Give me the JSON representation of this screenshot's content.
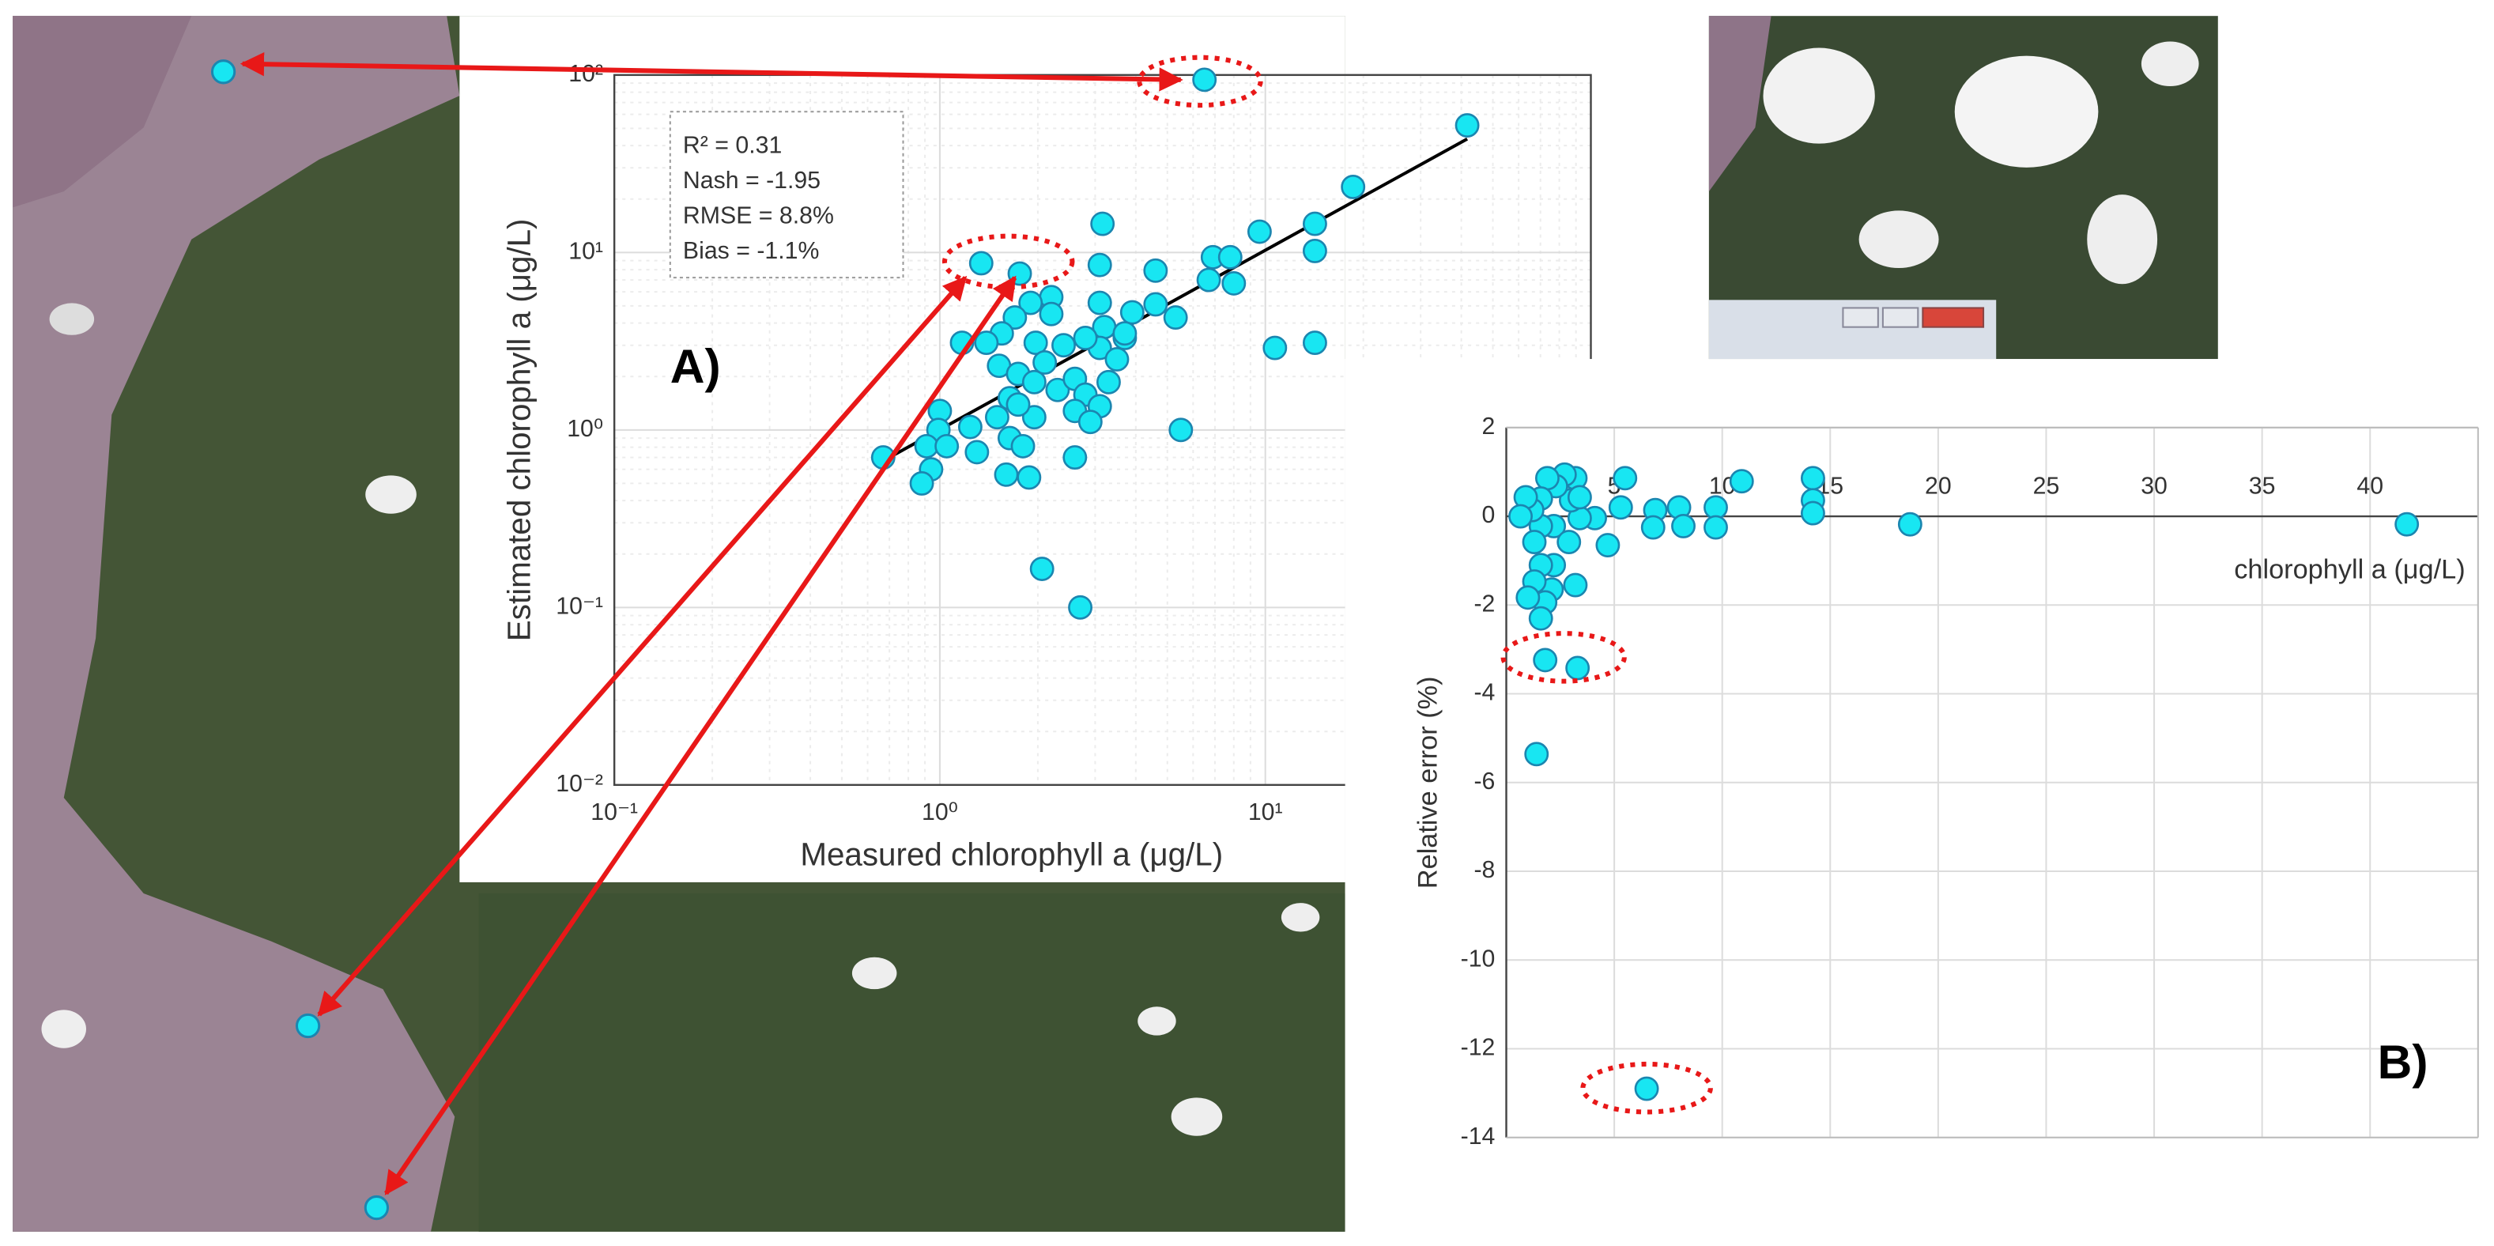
{
  "chart_data": [
    {
      "type": "scatter",
      "panel_label": "A)",
      "xlabel": "Measured chlorophyll a (μg/L)",
      "ylabel": "Estimated chlorophyll a (μg/L)",
      "stats": [
        "R² = 0.31",
        "Nash = -1.95",
        "RMSE = 8.8%",
        "Bias = -1.1%"
      ],
      "x_scale": "log",
      "y_scale": "log",
      "xlim": [
        0.1,
        100
      ],
      "ylim": [
        0.01,
        100
      ],
      "xticks": [
        {
          "value": 0.1,
          "label": "10⁻¹"
        },
        {
          "value": 1,
          "label": "10⁰"
        },
        {
          "value": 10,
          "label": "10¹"
        }
      ],
      "yticks": [
        {
          "value": 0.01,
          "label": "10⁻²"
        },
        {
          "value": 0.1,
          "label": "10⁻¹"
        },
        {
          "value": 1,
          "label": "10⁰"
        },
        {
          "value": 10,
          "label": "10¹"
        },
        {
          "value": 100,
          "label": "10²"
        }
      ],
      "grid": true,
      "color": "#18e6f2",
      "edge_color": "#1b86b0",
      "x": [
        6.5,
        41.7,
        0.67,
        1.34,
        1.76,
        3.16,
        18.6,
        14.2,
        14.2,
        9.6,
        6.9,
        7.8,
        6.7,
        8.0,
        4.6,
        3.1,
        3.1,
        5.3,
        4.6,
        3.9,
        3.7,
        3.2,
        3.1,
        2.8,
        2.2,
        2.2,
        1.9,
        1.7,
        1.55,
        1.39,
        1.17,
        1.97,
        1.52,
        1.74,
        1.95,
        2.1,
        1.64,
        1.5,
        1.95,
        1.74,
        2.3,
        2.6,
        2.8,
        3.1,
        3.3,
        2.6,
        2.9,
        3.5,
        3.7,
        1.0,
        0.99,
        0.91,
        0.94,
        0.88,
        1.05,
        1.24,
        1.3,
        1.64,
        1.6,
        1.88,
        2.6,
        5.5,
        10.7,
        14.2,
        2.06,
        2.7,
        1.8,
        2.4
      ],
      "values": [
        94,
        52,
        0.7,
        8.7,
        7.6,
        14.5,
        23.4,
        14.5,
        10.2,
        13.1,
        9.4,
        9.4,
        7.0,
        6.7,
        7.9,
        8.5,
        5.2,
        4.3,
        5.1,
        4.6,
        3.3,
        3.8,
        2.9,
        3.3,
        5.6,
        4.5,
        5.2,
        4.3,
        3.5,
        3.1,
        3.1,
        3.1,
        2.3,
        2.07,
        1.86,
        2.4,
        1.51,
        1.18,
        1.18,
        1.39,
        1.68,
        1.94,
        1.58,
        1.36,
        1.86,
        1.28,
        1.11,
        2.5,
        3.5,
        1.28,
        1.0,
        0.81,
        0.6,
        0.5,
        0.81,
        1.04,
        0.75,
        0.9,
        0.56,
        0.54,
        0.7,
        1.0,
        2.9,
        3.1,
        0.165,
        0.1,
        0.81,
        3.0
      ],
      "fit_line": {
        "x": [
          0.67,
          41.7
        ],
        "values": [
          0.67,
          43.6
        ],
        "color": "#000000"
      }
    },
    {
      "type": "scatter",
      "panel_label": "B)",
      "xlabel": "chlorophyll a (μg/L)",
      "ylabel": "Relative error (%)",
      "x_scale": "linear",
      "y_scale": "linear",
      "x_axis_position": "origin",
      "xlim": [
        0,
        45
      ],
      "ylim": [
        -14,
        2
      ],
      "xticks": [
        5,
        10,
        15,
        20,
        25,
        30,
        35,
        40
      ],
      "yticks": [
        -14,
        -12,
        -10,
        -8,
        -6,
        -4,
        -2,
        0,
        2
      ],
      "grid": true,
      "color": "#18e6f2",
      "edge_color": "#1b86b0",
      "x": [
        41.7,
        18.7,
        14.2,
        14.2,
        14.2,
        10.9,
        9.7,
        9.7,
        8.0,
        6.9,
        6.8,
        5.5,
        5.3,
        4.7,
        4.1,
        3.4,
        3.2,
        3.2,
        3.0,
        2.7,
        2.3,
        1.9,
        1.6,
        2.2,
        1.6,
        1.2,
        0.9,
        0.66,
        1.3,
        2.2,
        2.1,
        1.6,
        1.3,
        1.8,
        1.6,
        1.0,
        1.8,
        3.3,
        1.4,
        6.5,
        2.9,
        3.4,
        8.2
      ],
      "values": [
        -0.18,
        -0.18,
        0.86,
        0.36,
        0.07,
        0.79,
        0.2,
        -0.25,
        0.2,
        0.14,
        -0.25,
        0.86,
        0.2,
        -0.65,
        -0.04,
        -0.04,
        -1.55,
        0.86,
        0.36,
        0.94,
        0.68,
        0.86,
        0.4,
        -0.22,
        -0.22,
        0.14,
        0.43,
        0,
        -0.58,
        -1.1,
        -1.65,
        -1.1,
        -1.47,
        -1.94,
        -2.3,
        -1.83,
        -3.24,
        -3.42,
        -5.36,
        -12.9,
        -0.58,
        0.43,
        -0.22
      ]
    }
  ]
}
